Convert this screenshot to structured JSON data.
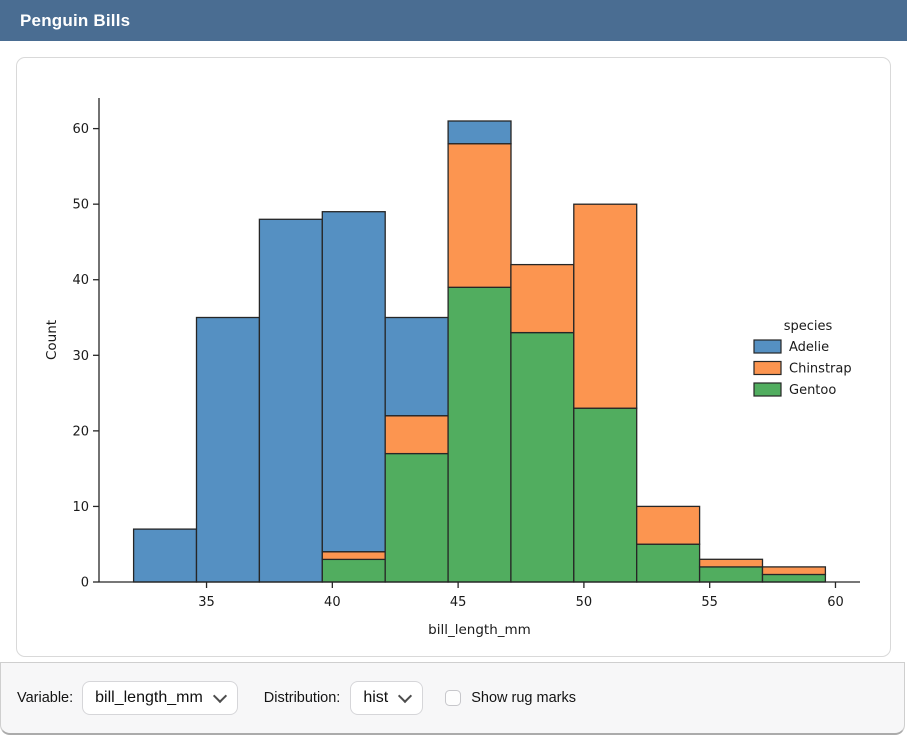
{
  "window": {
    "title": "Penguin Bills"
  },
  "theme": {
    "titlebar_bg": "#4a6d92",
    "card_border": "#d9d9d9",
    "bottombar_bg": "#f7f7f8",
    "axis_color": "#262626"
  },
  "controls": {
    "variable_label": "Variable:",
    "variable_value": "bill_length_mm",
    "distribution_label": "Distribution:",
    "distribution_value": "hist",
    "rug_label": "Show rug marks",
    "rug_checked": false
  },
  "chart_data": {
    "type": "bar",
    "subtype": "stacked-histogram",
    "title": "",
    "xlabel": "bill_length_mm",
    "ylabel": "Count",
    "bin_edges": [
      32.1,
      34.6,
      37.1,
      39.6,
      42.1,
      44.6,
      47.1,
      49.6,
      52.1,
      54.6,
      57.1,
      59.6
    ],
    "series": [
      {
        "name": "Adelie",
        "color": "#5590c2",
        "values": [
          7,
          35,
          48,
          45,
          13,
          3,
          0,
          0,
          0,
          0,
          0
        ]
      },
      {
        "name": "Chinstrap",
        "color": "#fc9550",
        "values": [
          0,
          0,
          0,
          1,
          5,
          19,
          9,
          27,
          5,
          1,
          1
        ]
      },
      {
        "name": "Gentoo",
        "color": "#51ad5f",
        "values": [
          0,
          0,
          0,
          3,
          17,
          39,
          33,
          23,
          5,
          2,
          1
        ]
      }
    ],
    "bin_totals": [
      7,
      35,
      48,
      49,
      35,
      61,
      42,
      50,
      10,
      3,
      2
    ],
    "stack_bottom_to_top": [
      "Gentoo",
      "Chinstrap",
      "Adelie"
    ],
    "legend": {
      "title": "species",
      "entries": [
        "Adelie",
        "Chinstrap",
        "Gentoo"
      ],
      "position": "right",
      "frame": false
    },
    "x_ticks": [
      35,
      40,
      45,
      50,
      55,
      60
    ],
    "y_ticks": [
      0,
      10,
      20,
      30,
      40,
      50,
      60
    ],
    "xlim": [
      30.725,
      60.975
    ],
    "ylim": [
      0,
      64.05
    ],
    "grid": false,
    "edge_color": "#262626"
  }
}
